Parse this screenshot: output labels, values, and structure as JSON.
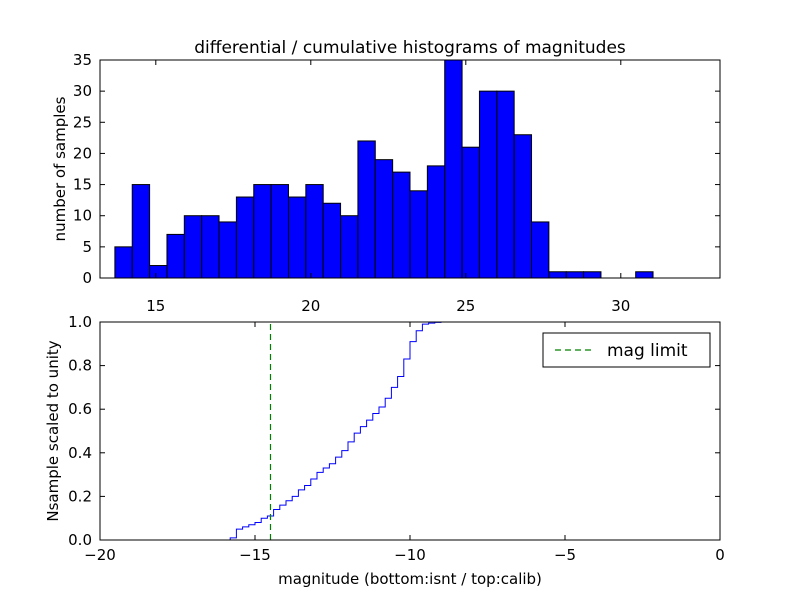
{
  "colors": {
    "bar_fill": "#0000ff",
    "bar_edge": "#000000",
    "cdf_line": "#0000ff",
    "limit_line": "#008000",
    "axes": "#000000",
    "background": "#ffffff"
  },
  "chart_data": [
    {
      "type": "bar",
      "title": "differential / cumulative histograms of magnitudes",
      "xlabel": "",
      "ylabel": "number of samples",
      "xlim": [
        13.2,
        33.2
      ],
      "ylim": [
        0,
        35
      ],
      "xticks": [
        15,
        20,
        25,
        30
      ],
      "yticks": [
        0,
        5,
        10,
        15,
        20,
        25,
        30,
        35
      ],
      "xtick_labels": [
        "15",
        "20",
        "25",
        "30"
      ],
      "ytick_labels": [
        "0",
        "5",
        "10",
        "15",
        "20",
        "25",
        "30",
        "35"
      ],
      "xtick_position": "top",
      "bin_edges": [
        13.68,
        14.24,
        14.8,
        15.36,
        15.92,
        16.48,
        17.04,
        17.6,
        18.16,
        18.72,
        19.28,
        19.84,
        20.4,
        20.96,
        21.52,
        22.08,
        22.64,
        23.2,
        23.76,
        24.32,
        24.88,
        25.44,
        26.0,
        26.56,
        27.12,
        27.68,
        28.24,
        28.8,
        29.36,
        29.92,
        30.48,
        31.04
      ],
      "values": [
        5,
        15,
        2,
        7,
        10,
        10,
        9,
        13,
        15,
        15,
        13,
        15,
        12,
        10,
        22,
        19,
        17,
        14,
        18,
        35,
        21,
        30,
        30,
        23,
        9,
        1,
        1,
        1,
        0,
        0,
        1
      ],
      "grid": false
    },
    {
      "type": "line",
      "title": "",
      "xlabel": "magnitude (bottom:isnt / top:calib)",
      "ylabel": "Nsample scaled to unity",
      "xlim": [
        -20,
        0
      ],
      "ylim": [
        0.0,
        1.0
      ],
      "xticks": [
        -20,
        -15,
        -10,
        -5,
        0
      ],
      "yticks": [
        0.0,
        0.2,
        0.4,
        0.6,
        0.8,
        1.0
      ],
      "xtick_labels": [
        "−20",
        "−15",
        "−10",
        "−5",
        "0"
      ],
      "ytick_labels": [
        "0.0",
        "0.2",
        "0.4",
        "0.6",
        "0.8",
        "1.0"
      ],
      "grid": false,
      "legend_position": "top-right",
      "series": [
        {
          "name": "",
          "style": "step",
          "x": [
            -20.0,
            -15.8,
            -15.6,
            -15.4,
            -15.2,
            -15.0,
            -14.8,
            -14.6,
            -14.4,
            -14.2,
            -14.0,
            -13.8,
            -13.6,
            -13.4,
            -13.2,
            -13.0,
            -12.8,
            -12.6,
            -12.4,
            -12.2,
            -12.0,
            -11.8,
            -11.6,
            -11.4,
            -11.2,
            -11.0,
            -10.8,
            -10.6,
            -10.4,
            -10.2,
            -10.0,
            -9.8,
            -9.6,
            -9.4,
            -9.2,
            -9.0,
            -8.8,
            -0.05
          ],
          "y": [
            0.0,
            0.01,
            0.05,
            0.06,
            0.07,
            0.08,
            0.1,
            0.11,
            0.14,
            0.16,
            0.18,
            0.2,
            0.23,
            0.25,
            0.28,
            0.31,
            0.33,
            0.35,
            0.38,
            0.41,
            0.45,
            0.49,
            0.52,
            0.55,
            0.58,
            0.61,
            0.65,
            0.7,
            0.75,
            0.83,
            0.91,
            0.96,
            0.99,
            0.995,
            0.998,
            1.0,
            1.0,
            1.0
          ]
        },
        {
          "name": "mag limit",
          "style": "dashed-vertical",
          "x": [
            -14.5,
            -14.5
          ],
          "y": [
            0.0,
            1.0
          ]
        }
      ]
    }
  ]
}
